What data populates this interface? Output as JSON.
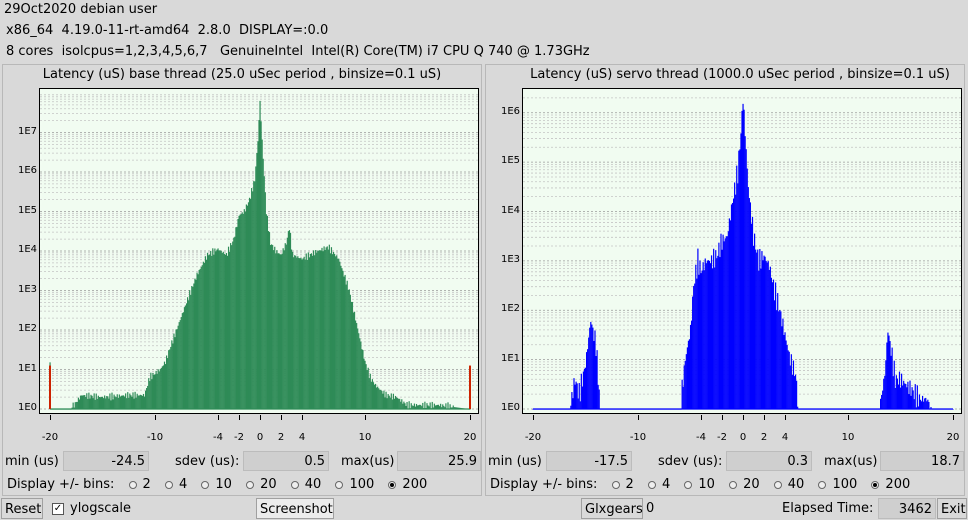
{
  "header": {
    "line1": "29Oct2020 debian user",
    "line2": "x86_64  4.19.0-11-rt-amd64  2.8.0  DISPLAY=:0.0",
    "line3": "8 cores  isolcpus=1,2,3,4,5,6,7   GenuineIntel  Intel(R) Core(TM) i7 CPU Q 740 @ 1.73GHz"
  },
  "base": {
    "title": "Latency (uS) base thread (25.0 uSec period , binsize=0.1 uS)",
    "min_label": "min (us)",
    "min": "-24.5",
    "sdev_label": "sdev (us):",
    "sdev": "0.5",
    "max_label": "max(us)",
    "max": "25.9",
    "bins_label": "Display +/- bins:",
    "bins": [
      "2",
      "4",
      "10",
      "20",
      "40",
      "100",
      "200"
    ],
    "selected_bin": "200"
  },
  "servo": {
    "title": "Latency (uS) servo thread (1000.0 uSec period , binsize=0.1 uS)",
    "min_label": "min (us)",
    "min": "-17.5",
    "sdev_label": "sdev (us):",
    "sdev": "0.3",
    "max_label": "max(us)",
    "max": "18.7",
    "bins_label": "Display +/- bins:",
    "bins": [
      "2",
      "4",
      "10",
      "20",
      "40",
      "100",
      "200"
    ],
    "selected_bin": "200"
  },
  "bottom": {
    "reset": "Reset",
    "ylogscale": "ylogscale",
    "ylogscale_checked": true,
    "screenshot": "Screenshot",
    "glxgears": "Glxgears",
    "glxgears_value": "0",
    "elapsed_label": "Elapsed Time:",
    "elapsed_value": "3462",
    "exit": "Exit"
  },
  "colors": {
    "base_fill": "#2e8b57",
    "servo_fill": "#0000ff",
    "plot_bg": "#f1fcf1",
    "edge_marker": "#cc2200"
  },
  "chart_data": [
    {
      "type": "bar",
      "title": "Latency (uS) base thread (25.0 uSec period , binsize=0.1 uS)",
      "xlabel": "",
      "ylabel": "",
      "x_ticks": [
        "-20",
        "-10",
        "-4",
        "-2",
        "0",
        "2",
        "4",
        "10",
        "20"
      ],
      "x_tick_values": [
        -20,
        -10,
        -4,
        -2,
        0,
        2,
        4,
        10,
        20
      ],
      "y_ticks": [
        "1E0",
        "1E1",
        "1E2",
        "1E3",
        "1E4",
        "1E5",
        "1E6",
        "1E7"
      ],
      "log_y": true,
      "xlim": [
        -20,
        20
      ],
      "ylim_log10": [
        0,
        8
      ],
      "grid": true,
      "profile_log10": [
        [
          -20,
          1.1
        ],
        [
          -19.9,
          0
        ],
        [
          -18,
          0
        ],
        [
          -17,
          0.35
        ],
        [
          -15,
          0.3
        ],
        [
          -12.5,
          0.35
        ],
        [
          -11,
          0.35
        ],
        [
          -10.5,
          0.8
        ],
        [
          -9.5,
          1
        ],
        [
          -9,
          1.2
        ],
        [
          -8.5,
          1.6
        ],
        [
          -7,
          2.7
        ],
        [
          -6,
          3.4
        ],
        [
          -5,
          3.9
        ],
        [
          -4,
          4.05
        ],
        [
          -3.2,
          3.9
        ],
        [
          -2.5,
          4.3
        ],
        [
          -2,
          4.9
        ],
        [
          -1.5,
          5.0
        ],
        [
          -1,
          5.3
        ],
        [
          -0.5,
          5.8
        ],
        [
          -0.2,
          6.8
        ],
        [
          0,
          7.8
        ],
        [
          0.2,
          6.8
        ],
        [
          0.6,
          5.0
        ],
        [
          1,
          4.2
        ],
        [
          1.5,
          4.0
        ],
        [
          2,
          3.9
        ],
        [
          2.5,
          4.2
        ],
        [
          2.8,
          4.6
        ],
        [
          3.1,
          3.9
        ],
        [
          4,
          3.8
        ],
        [
          5.5,
          4.0
        ],
        [
          6.5,
          4.1
        ],
        [
          7.5,
          3.8
        ],
        [
          8.5,
          3.0
        ],
        [
          9.5,
          1.8
        ],
        [
          10,
          1.2
        ],
        [
          10.5,
          0.8
        ],
        [
          11,
          0.6
        ],
        [
          12,
          0.35
        ],
        [
          13,
          0.3
        ],
        [
          14,
          0.1
        ],
        [
          17,
          0.1
        ],
        [
          19.9,
          0
        ],
        [
          20,
          1.1
        ]
      ]
    },
    {
      "type": "bar",
      "title": "Latency (uS) servo thread (1000.0 uSec period , binsize=0.1 uS)",
      "xlabel": "",
      "ylabel": "",
      "x_ticks": [
        "-20",
        "-10",
        "-4",
        "-2",
        "0",
        "2",
        "4",
        "10",
        "20"
      ],
      "x_tick_values": [
        -20,
        -10,
        -4,
        -2,
        0,
        2,
        4,
        10,
        20
      ],
      "y_ticks": [
        "1E0",
        "1E1",
        "1E2",
        "1E3",
        "1E4",
        "1E5",
        "1E6"
      ],
      "log_y": true,
      "xlim": [
        -20,
        20
      ],
      "ylim_log10": [
        0,
        6.4
      ],
      "grid": true,
      "profile_log10": [
        [
          -20,
          0
        ],
        [
          -16.5,
          0
        ],
        [
          -16,
          0.6
        ],
        [
          -15.6,
          0.3
        ],
        [
          -15,
          0.9
        ],
        [
          -14.5,
          1.8
        ],
        [
          -14,
          1.3
        ],
        [
          -13.6,
          0
        ],
        [
          -6,
          0
        ],
        [
          -5.5,
          1.0
        ],
        [
          -5,
          1.6
        ],
        [
          -4.7,
          2.5
        ],
        [
          -4.3,
          3.0
        ],
        [
          -4,
          2.8
        ],
        [
          -3.5,
          3.0
        ],
        [
          -3,
          3.0
        ],
        [
          -2.5,
          3.1
        ],
        [
          -2,
          3.4
        ],
        [
          -1.5,
          3.5
        ],
        [
          -1,
          4.2
        ],
        [
          -0.5,
          4.8
        ],
        [
          -0.2,
          5.6
        ],
        [
          0,
          6.3
        ],
        [
          0.2,
          5.6
        ],
        [
          0.5,
          4.5
        ],
        [
          1,
          3.5
        ],
        [
          1.5,
          3.0
        ],
        [
          2,
          3.1
        ],
        [
          2.5,
          2.9
        ],
        [
          3,
          2.4
        ],
        [
          3.5,
          2.0
        ],
        [
          4,
          1.5
        ],
        [
          4.5,
          1.0
        ],
        [
          5,
          0.7
        ],
        [
          5.3,
          0
        ],
        [
          13,
          0
        ],
        [
          13.5,
          0.7
        ],
        [
          13.8,
          1.6
        ],
        [
          14.1,
          1.2
        ],
        [
          14.5,
          0.6
        ],
        [
          15,
          0.6
        ],
        [
          15.5,
          0.5
        ],
        [
          16,
          0.4
        ],
        [
          16.8,
          0.2
        ],
        [
          17.5,
          0.2
        ],
        [
          18,
          0
        ]
      ]
    }
  ]
}
